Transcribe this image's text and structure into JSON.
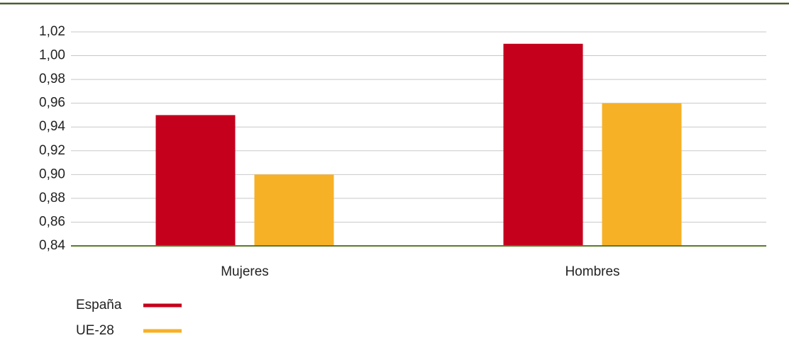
{
  "chart_data": {
    "type": "bar",
    "categories": [
      "Mujeres",
      "Hombres"
    ],
    "series": [
      {
        "name": "España",
        "color": "#c4001c",
        "values": [
          0.95,
          1.01
        ]
      },
      {
        "name": "UE-28",
        "color": "#f7b126",
        "values": [
          0.9,
          0.96
        ]
      }
    ],
    "ylim": [
      0.84,
      1.02
    ],
    "yticks": [
      {
        "value": 0.84,
        "label": "0,84"
      },
      {
        "value": 0.86,
        "label": "0,86"
      },
      {
        "value": 0.88,
        "label": "0,88"
      },
      {
        "value": 0.9,
        "label": "0,90"
      },
      {
        "value": 0.92,
        "label": "0,92"
      },
      {
        "value": 0.94,
        "label": "0,94"
      },
      {
        "value": 0.96,
        "label": "0,96"
      },
      {
        "value": 0.98,
        "label": "0,98"
      },
      {
        "value": 1.0,
        "label": "1,00"
      },
      {
        "value": 1.02,
        "label": "1,02"
      }
    ],
    "grid": true,
    "legend": "bottom-left"
  }
}
